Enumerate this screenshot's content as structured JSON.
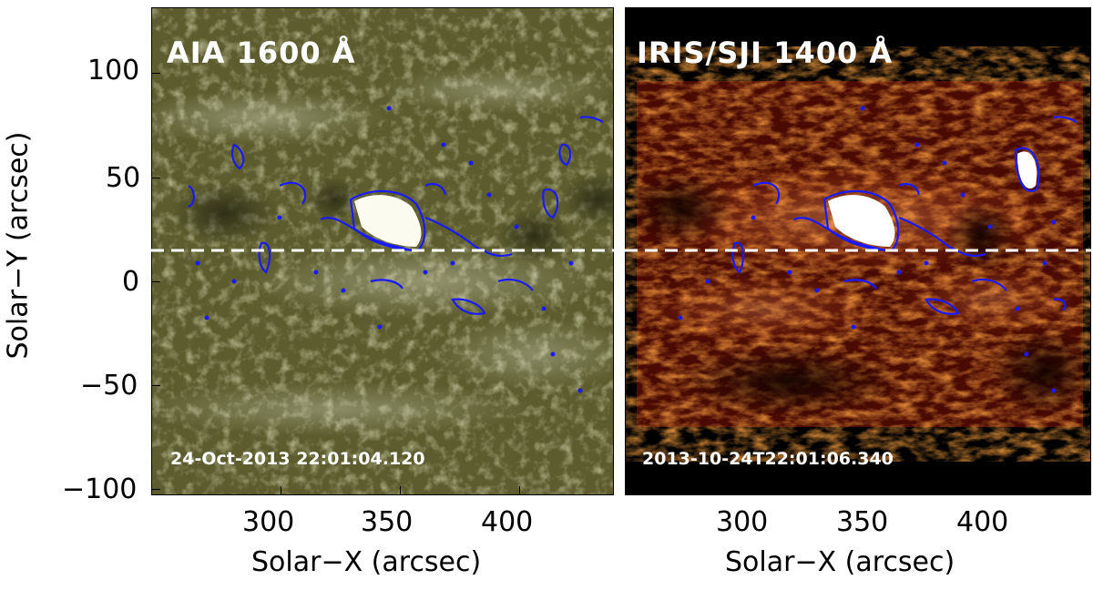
{
  "panels": [
    {
      "title": "AIA 1600 Å",
      "timestamp": "24-Oct-2013 22:01:04.120",
      "colormap": "#6d6d3a",
      "contour_color": "#1a1aff"
    },
    {
      "title": "IRIS/SJI 1400 Å",
      "timestamp": "2013-10-24T22:01:06.340",
      "colormap": "#8a1a05",
      "contour_color": "#1a1aff"
    }
  ],
  "axes": {
    "xlabel": "Solar−X (arcsec)",
    "ylabel": "Solar−Y (arcsec)",
    "x_ticks": [
      "300",
      "350",
      "400"
    ],
    "y_ticks": [
      "100",
      "50",
      "0",
      "−50",
      "−100"
    ],
    "cut_line_y": 14,
    "cut_line_color": "#ffffff"
  }
}
